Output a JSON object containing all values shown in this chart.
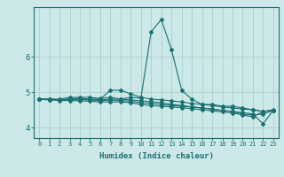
{
  "xlabel": "Humidex (Indice chaleur)",
  "ylabel": "",
  "bg_color": "#cce8e8",
  "line_color": "#1a7070",
  "grid_color": "#aacfcf",
  "xlim": [
    -0.5,
    23.5
  ],
  "ylim": [
    3.7,
    7.4
  ],
  "yticks": [
    4,
    5,
    6
  ],
  "xticks": [
    0,
    1,
    2,
    3,
    4,
    5,
    6,
    7,
    8,
    9,
    10,
    11,
    12,
    13,
    14,
    15,
    16,
    17,
    18,
    19,
    20,
    21,
    22,
    23
  ],
  "lines": [
    {
      "x": [
        0,
        1,
        2,
        3,
        4,
        5,
        6,
        7,
        8,
        9,
        10,
        11,
        12,
        13,
        14,
        15,
        16,
        17,
        18,
        19,
        20,
        21,
        22,
        23
      ],
      "y": [
        4.8,
        4.8,
        4.8,
        4.85,
        4.85,
        4.85,
        4.82,
        4.85,
        4.8,
        4.85,
        4.83,
        6.7,
        7.05,
        6.2,
        5.05,
        4.8,
        4.65,
        4.65,
        4.6,
        4.6,
        4.55,
        4.5,
        4.45,
        4.5
      ]
    },
    {
      "x": [
        0,
        1,
        2,
        3,
        4,
        5,
        6,
        7,
        8,
        9,
        10,
        11,
        12,
        13,
        14,
        15,
        16,
        17,
        18,
        19,
        20,
        21,
        22,
        23
      ],
      "y": [
        4.8,
        4.8,
        4.78,
        4.8,
        4.82,
        4.8,
        4.8,
        5.05,
        5.05,
        4.95,
        4.85,
        4.8,
        4.78,
        4.75,
        4.72,
        4.68,
        4.65,
        4.62,
        4.58,
        4.55,
        4.52,
        4.5,
        4.45,
        4.48
      ]
    },
    {
      "x": [
        0,
        1,
        2,
        3,
        4,
        5,
        6,
        7,
        8,
        9,
        10,
        11,
        12,
        13,
        14,
        15,
        16,
        17,
        18,
        19,
        20,
        21,
        22,
        23
      ],
      "y": [
        4.8,
        4.8,
        4.78,
        4.8,
        4.8,
        4.78,
        4.78,
        4.8,
        4.8,
        4.78,
        4.75,
        4.73,
        4.7,
        4.65,
        4.62,
        4.58,
        4.55,
        4.52,
        4.48,
        4.45,
        4.42,
        4.38,
        4.1,
        4.48
      ]
    },
    {
      "x": [
        0,
        1,
        2,
        3,
        4,
        5,
        6,
        7,
        8,
        9,
        10,
        11,
        12,
        13,
        14,
        15,
        16,
        17,
        18,
        19,
        20,
        21,
        22,
        23
      ],
      "y": [
        4.8,
        4.78,
        4.78,
        4.78,
        4.78,
        4.78,
        4.76,
        4.77,
        4.76,
        4.74,
        4.7,
        4.68,
        4.65,
        4.62,
        4.6,
        4.58,
        4.55,
        4.52,
        4.48,
        4.45,
        4.38,
        4.35,
        4.38,
        4.48
      ]
    },
    {
      "x": [
        0,
        1,
        2,
        3,
        4,
        5,
        6,
        7,
        8,
        9,
        10,
        11,
        12,
        13,
        14,
        15,
        16,
        17,
        18,
        19,
        20,
        21,
        22,
        23
      ],
      "y": [
        4.8,
        4.78,
        4.76,
        4.76,
        4.75,
        4.74,
        4.72,
        4.72,
        4.72,
        4.7,
        4.65,
        4.62,
        4.6,
        4.58,
        4.56,
        4.53,
        4.5,
        4.47,
        4.44,
        4.41,
        4.35,
        4.3,
        4.45,
        4.48
      ]
    }
  ]
}
